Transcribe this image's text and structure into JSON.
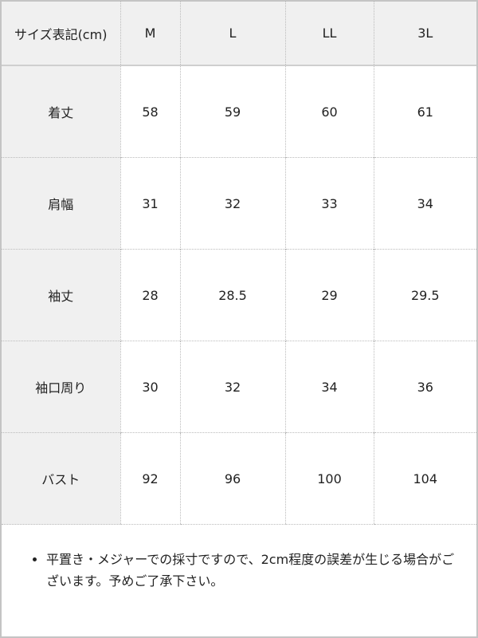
{
  "table": {
    "headers": [
      "サイズ表記(cm)",
      "M",
      "L",
      "LL",
      "3L"
    ],
    "rows": [
      {
        "label": "着丈",
        "values": [
          "58",
          "59",
          "60",
          "61"
        ]
      },
      {
        "label": "肩幅",
        "values": [
          "31",
          "32",
          "33",
          "34"
        ]
      },
      {
        "label": "袖丈",
        "values": [
          "28",
          "28.5",
          "29",
          "29.5"
        ]
      },
      {
        "label": "袖口周り",
        "values": [
          "30",
          "32",
          "34",
          "36"
        ]
      },
      {
        "label": "バスト",
        "values": [
          "92",
          "96",
          "100",
          "104"
        ]
      }
    ]
  },
  "note": "平置き・メジャーでの採寸ですので、2cm程度の誤差が生じる場合がございます。予めご了承下さい。"
}
